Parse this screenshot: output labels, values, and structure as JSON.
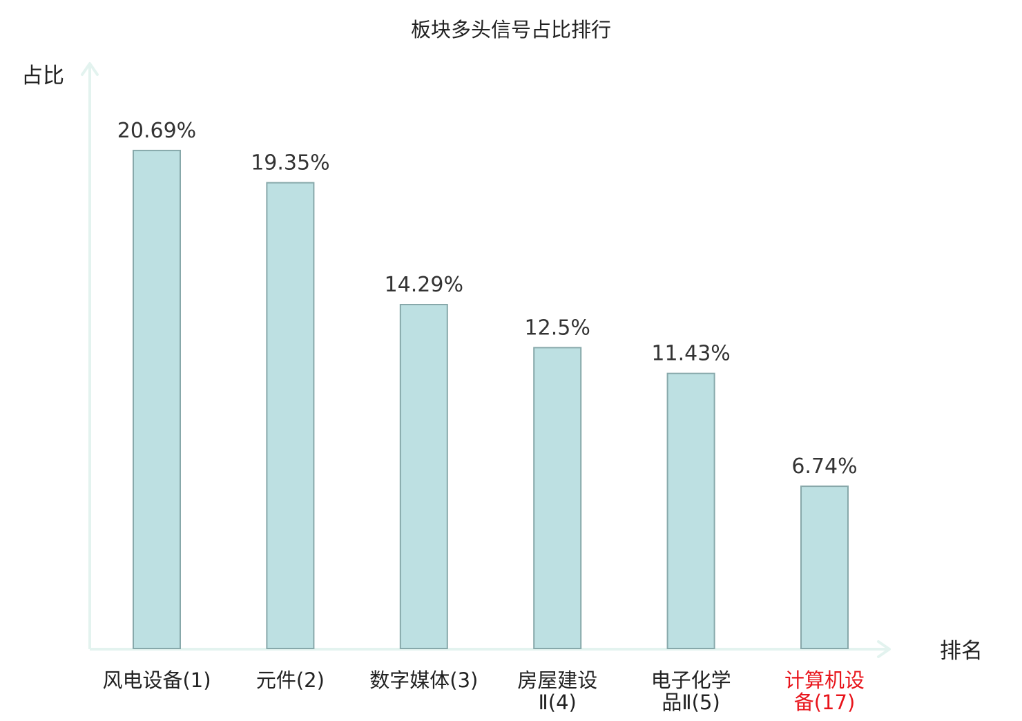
{
  "chart_data": {
    "type": "bar",
    "title": "板块多头信号占比排行",
    "ylabel": "占比",
    "xlabel": "排名",
    "grid": false,
    "legend": "none",
    "ylim": [
      0,
      23.5
    ],
    "categories": [
      {
        "lines": [
          "风电设备(1)"
        ],
        "highlight": false
      },
      {
        "lines": [
          "元件(2)"
        ],
        "highlight": false
      },
      {
        "lines": [
          "数字媒体(3)"
        ],
        "highlight": false
      },
      {
        "lines": [
          "房屋建设",
          "Ⅱ(4)"
        ],
        "highlight": false
      },
      {
        "lines": [
          "电子化学",
          "品Ⅱ(5)"
        ],
        "highlight": false
      },
      {
        "lines": [
          "计算机设",
          "备(17)"
        ],
        "highlight": true
      }
    ],
    "values": [
      20.69,
      19.35,
      14.29,
      12.5,
      11.43,
      6.74
    ],
    "value_labels": [
      "20.69%",
      "19.35%",
      "14.29%",
      "12.5%",
      "11.43%",
      "6.74%"
    ],
    "colors": {
      "bar_fill": "#bde0e2",
      "bar_stroke": "#87a8aa",
      "axis": "#e3f3ef",
      "text": "#222222",
      "value_text": "#333333",
      "highlight_text": "#e8141b"
    }
  }
}
